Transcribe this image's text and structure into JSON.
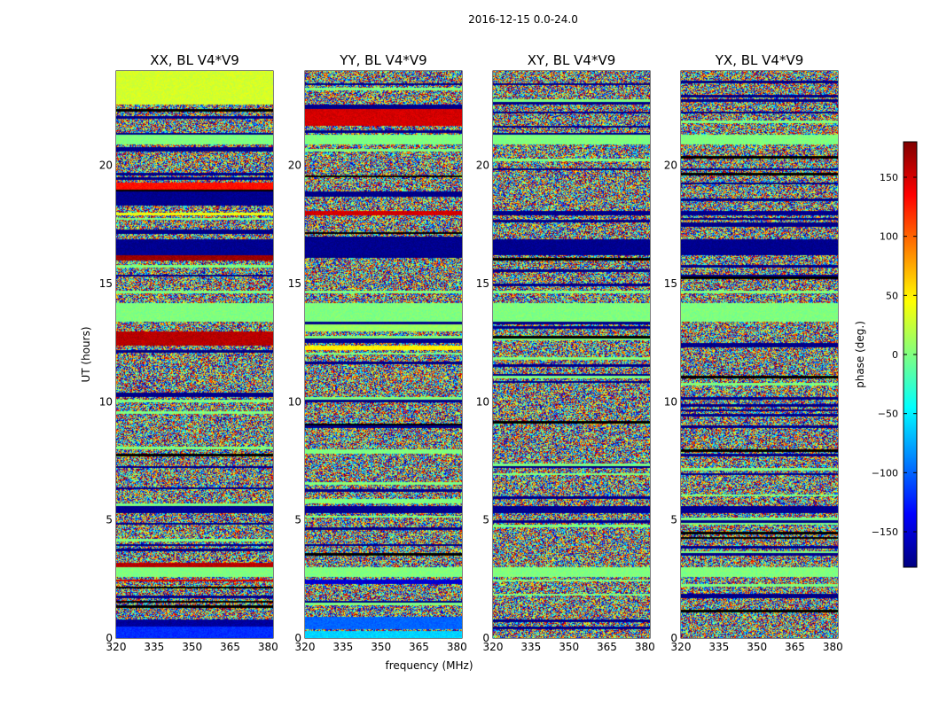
{
  "chart_data": {
    "type": "heatmap",
    "suptitle": "2016-12-15 0.0-24.0",
    "xlabel": "frequency (MHz)",
    "ylabel": "UT (hours)",
    "xlim": [
      320,
      382
    ],
    "ylim": [
      0,
      24
    ],
    "xticks": [
      320,
      335,
      350,
      365,
      380
    ],
    "yticks": [
      0,
      5,
      10,
      15,
      20
    ],
    "colorbar": {
      "label": "phase (deg.)",
      "range": [
        -180,
        180
      ],
      "ticks": [
        -150,
        -100,
        -50,
        0,
        50,
        100,
        150
      ],
      "colormap": "jet",
      "colors": [
        "#000080",
        "#0000ff",
        "#0080ff",
        "#00ffff",
        "#80ff80",
        "#ffff00",
        "#ff8000",
        "#ff0000",
        "#800000"
      ]
    },
    "panels": [
      {
        "title": "XX, BL V4*V9",
        "rows": [
          {
            "t0": 0.0,
            "t1": 0.5,
            "mode": "band",
            "value": -120
          },
          {
            "t0": 0.5,
            "t1": 0.85,
            "mode": "band",
            "value": -170
          },
          {
            "t0": 2.4,
            "t1": 2.55,
            "mode": "band",
            "value": 150
          },
          {
            "t0": 2.6,
            "t1": 3.05,
            "mode": "band",
            "value": 0
          },
          {
            "t0": 3.05,
            "t1": 3.25,
            "mode": "band",
            "value": 160
          },
          {
            "t0": 5.35,
            "t1": 5.6,
            "mode": "band",
            "value": -175
          },
          {
            "t0": 12.45,
            "t1": 13.05,
            "mode": "band",
            "value": 160
          },
          {
            "t0": 13.4,
            "t1": 14.2,
            "mode": "band",
            "value": 0
          },
          {
            "t0": 16.05,
            "t1": 16.2,
            "mode": "band",
            "value": 170
          },
          {
            "t0": 16.2,
            "t1": 16.9,
            "mode": "band",
            "value": -175
          },
          {
            "t0": 17.9,
            "t1": 18.05,
            "mode": "band",
            "value": 40
          },
          {
            "t0": 18.3,
            "t1": 18.9,
            "mode": "band",
            "value": -175
          },
          {
            "t0": 19.0,
            "t1": 19.3,
            "mode": "band",
            "value": 130
          },
          {
            "t0": 20.9,
            "t1": 21.35,
            "mode": "band",
            "value": 0
          },
          {
            "t0": 22.6,
            "t1": 24.0,
            "mode": "band",
            "value": 30
          }
        ]
      },
      {
        "title": "YY, BL V4*V9",
        "rows": [
          {
            "t0": 0.0,
            "t1": 0.3,
            "mode": "band",
            "value": -60
          },
          {
            "t0": 0.45,
            "t1": 0.9,
            "mode": "band",
            "value": -100
          },
          {
            "t0": 2.3,
            "t1": 2.5,
            "mode": "band",
            "value": -150
          },
          {
            "t0": 2.6,
            "t1": 3.05,
            "mode": "band",
            "value": 0
          },
          {
            "t0": 5.35,
            "t1": 5.6,
            "mode": "band",
            "value": -175
          },
          {
            "t0": 12.2,
            "t1": 12.45,
            "mode": "band",
            "value": 50
          },
          {
            "t0": 13.0,
            "t1": 13.35,
            "mode": "band",
            "value": 10
          },
          {
            "t0": 13.4,
            "t1": 14.2,
            "mode": "band",
            "value": 0
          },
          {
            "t0": 16.2,
            "t1": 16.9,
            "mode": "band",
            "value": -175
          },
          {
            "t0": 17.9,
            "t1": 18.1,
            "mode": "band",
            "value": 150
          },
          {
            "t0": 20.9,
            "t1": 21.35,
            "mode": "band",
            "value": 0
          },
          {
            "t0": 21.7,
            "t1": 22.4,
            "mode": "band",
            "value": 150
          }
        ]
      },
      {
        "title": "XY, BL V4*V9",
        "rows": [
          {
            "t0": 2.6,
            "t1": 3.05,
            "mode": "band",
            "value": 0
          },
          {
            "t0": 5.35,
            "t1": 5.6,
            "mode": "band",
            "value": -175
          },
          {
            "t0": 13.4,
            "t1": 14.2,
            "mode": "band",
            "value": 0
          },
          {
            "t0": 16.2,
            "t1": 16.9,
            "mode": "band",
            "value": -175
          },
          {
            "t0": 17.9,
            "t1": 18.1,
            "mode": "band",
            "value": -175
          },
          {
            "t0": 20.9,
            "t1": 21.35,
            "mode": "band",
            "value": 0
          }
        ]
      },
      {
        "title": "YX, BL V4*V9",
        "rows": [
          {
            "t0": 2.6,
            "t1": 3.05,
            "mode": "band",
            "value": 0
          },
          {
            "t0": 5.35,
            "t1": 5.6,
            "mode": "band",
            "value": -175
          },
          {
            "t0": 13.4,
            "t1": 14.2,
            "mode": "band",
            "value": 0
          },
          {
            "t0": 16.2,
            "t1": 16.9,
            "mode": "band",
            "value": -175
          },
          {
            "t0": 17.9,
            "t1": 18.1,
            "mode": "band",
            "value": -175
          },
          {
            "t0": 20.9,
            "t1": 21.35,
            "mode": "band",
            "value": 0
          }
        ]
      }
    ],
    "background": "noise"
  }
}
